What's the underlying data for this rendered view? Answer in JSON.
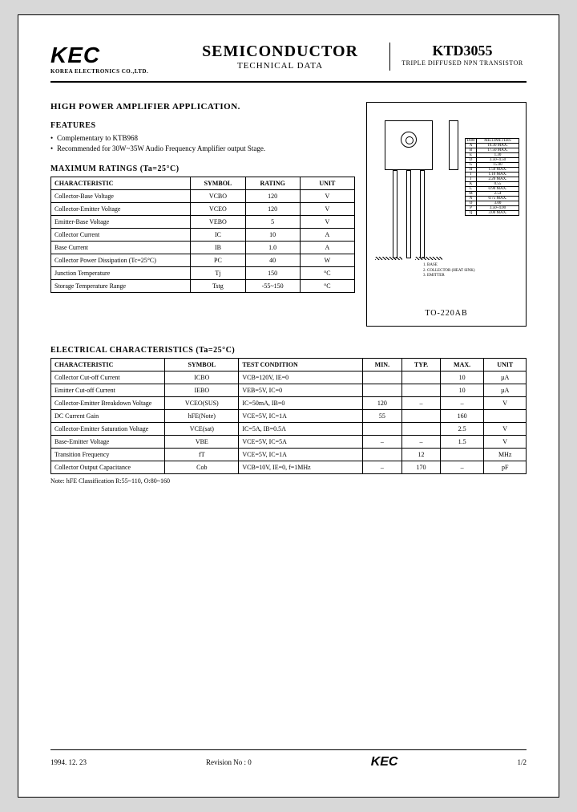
{
  "header": {
    "logo": "KEC",
    "logo_sub": "KOREA ELECTRONICS CO.,LTD.",
    "mid_top": "SEMICONDUCTOR",
    "mid_sub": "TECHNICAL DATA",
    "part": "KTD3055",
    "part_sub": "TRIPLE DIFFUSED NPN TRANSISTOR"
  },
  "app_title": "HIGH POWER AMPLIFIER APPLICATION.",
  "features_label": "FEATURES",
  "features": [
    "Complementary to KTB968",
    "Recommended for 30W~35W Audio Frequency Amplifier output Stage."
  ],
  "max_ratings_label": "MAXIMUM RATINGS (Ta=25°C)",
  "t1_headers": [
    "CHARACTERISTIC",
    "SYMBOL",
    "RATING",
    "UNIT"
  ],
  "t1_rows": [
    [
      "Collector-Base Voltage",
      "VCBO",
      "120",
      "V"
    ],
    [
      "Collector-Emitter Voltage",
      "VCEO",
      "120",
      "V"
    ],
    [
      "Emitter-Base Voltage",
      "VEBO",
      "5",
      "V"
    ],
    [
      "Collector Current",
      "IC",
      "10",
      "A"
    ],
    [
      "Base Current",
      "IB",
      "1.0",
      "A"
    ],
    [
      "Collector Power Dissipation (Tc=25°C)",
      "PC",
      "40",
      "W"
    ],
    [
      "Junction Temperature",
      "Tj",
      "150",
      "°C"
    ],
    [
      "Storage Temperature Range",
      "Tstg",
      "-55~150",
      "°C"
    ]
  ],
  "pkg": {
    "dim_header": [
      "DIM",
      "MILLIMETERS"
    ],
    "dims": [
      [
        "A",
        "10.30 MAX."
      ],
      [
        "B",
        "17.50 MAX."
      ],
      [
        "E",
        "1.30"
      ],
      [
        "D",
        "3.50~4.50"
      ],
      [
        "G",
        "15.00"
      ],
      [
        "H",
        "1.50 MAX."
      ],
      [
        "I",
        "1.10 MAX."
      ],
      [
        "J",
        "2.20 MAX."
      ],
      [
        "K",
        "0.55"
      ],
      [
        "L",
        "0.90 MAX."
      ],
      [
        "M",
        "2.54"
      ],
      [
        "N",
        "0.75 MAX."
      ],
      [
        "O",
        "3.00"
      ],
      [
        "P",
        "3.50~4.00"
      ],
      [
        "Q",
        "3.00 MAX."
      ]
    ],
    "pins": [
      "1. BASE",
      "2. COLLECTOR (HEAT SINK)",
      "3. EMITTER"
    ],
    "label": "TO-220AB"
  },
  "elec_label": "ELECTRICAL CHARACTERISTICS (Ta=25°C)",
  "t2_headers": [
    "CHARACTERISTIC",
    "SYMBOL",
    "TEST CONDITION",
    "MIN.",
    "TYP.",
    "MAX.",
    "UNIT"
  ],
  "t2_rows": [
    [
      "Collector Cut-off Current",
      "ICBO",
      "VCB=120V, IE=0",
      "",
      "",
      "10",
      "µA"
    ],
    [
      "Emitter Cut-off Current",
      "IEBO",
      "VEB=5V, IC=0",
      "",
      "",
      "10",
      "µA"
    ],
    [
      "Collector-Emitter Breakdown Voltage",
      "VCEO(SUS)",
      "IC=50mA, IB=0",
      "120",
      "–",
      "–",
      "V"
    ],
    [
      "DC Current Gain",
      "hFE(Note)",
      "VCE=5V, IC=1A",
      "55",
      "",
      "160",
      ""
    ],
    [
      "Collector-Emitter Saturation Voltage",
      "VCE(sat)",
      "IC=5A, IB=0.5A",
      "",
      "",
      "2.5",
      "V"
    ],
    [
      "Base-Emitter Voltage",
      "VBE",
      "VCE=5V, IC=5A",
      "–",
      "–",
      "1.5",
      "V"
    ],
    [
      "Transition Frequency",
      "fT",
      "VCE=5V, IC=1A",
      "",
      "12",
      "",
      "MHz"
    ],
    [
      "Collector Output Capacitance",
      "Cob",
      "VCB=10V, IE=0, f=1MHz",
      "–",
      "170",
      "–",
      "pF"
    ]
  ],
  "note": "Note: hFE Classification    R:55~110,    O:80~160",
  "footer": {
    "date": "1994. 12. 23",
    "rev": "Revision No : 0",
    "logo": "KEC",
    "page": "1/2"
  }
}
